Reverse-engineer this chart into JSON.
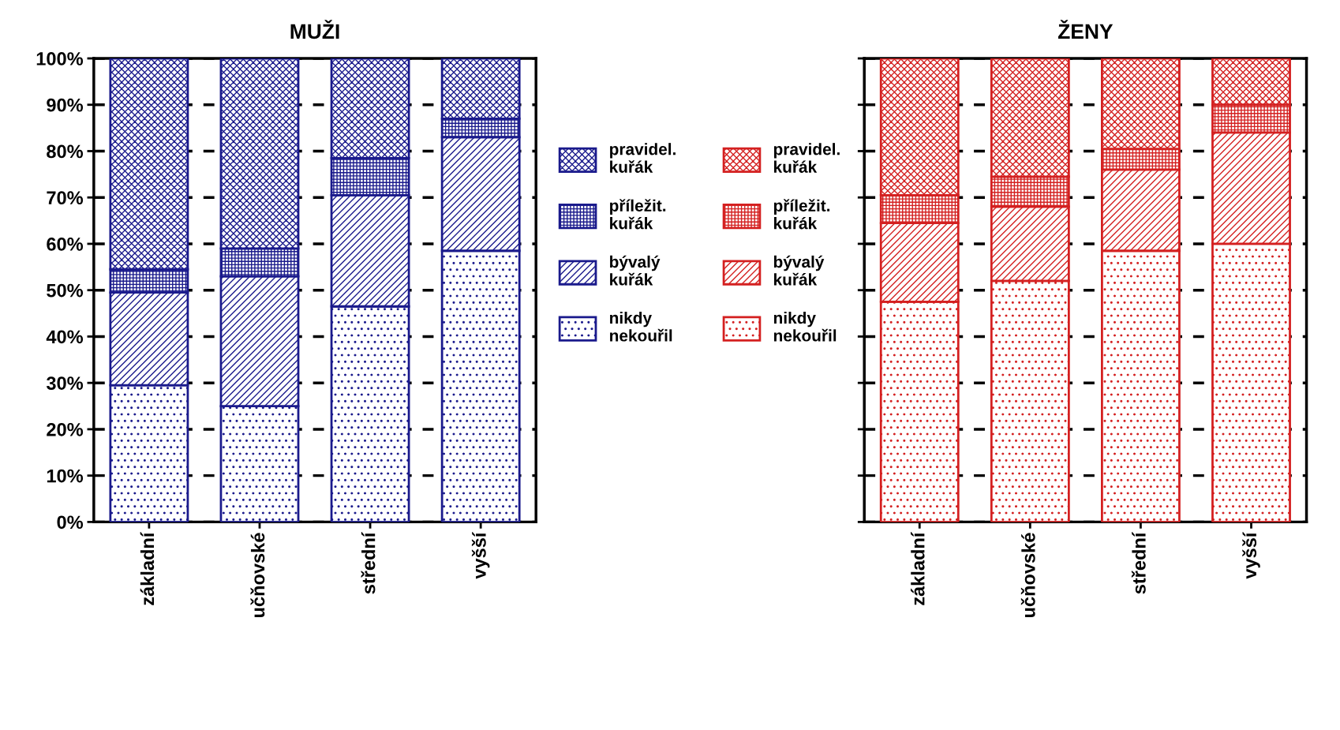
{
  "chart_data": [
    {
      "type": "bar",
      "title": "MUŽI",
      "stacked": true,
      "categories": [
        "základní",
        "učňovské",
        "střední",
        "vyšší"
      ],
      "ylim": [
        0,
        100
      ],
      "yticks": [
        {
          "value": 0,
          "label": "0%"
        },
        {
          "value": 10,
          "label": "10%"
        },
        {
          "value": 20,
          "label": "20%"
        },
        {
          "value": 30,
          "label": "30%"
        },
        {
          "value": 40,
          "label": "40%"
        },
        {
          "value": 50,
          "label": "50%"
        },
        {
          "value": 60,
          "label": "60%"
        },
        {
          "value": 70,
          "label": "70%"
        },
        {
          "value": 80,
          "label": "80%"
        },
        {
          "value": 90,
          "label": "90%"
        },
        {
          "value": 100,
          "label": "100%"
        }
      ],
      "grid": "y",
      "legend": "right",
      "series": [
        {
          "name": "nikdy\nnekouřil",
          "color": "#1a1a8c",
          "values": [
            29.5,
            25,
            46.5,
            58.5
          ]
        },
        {
          "name": "bývalý\nkuřák",
          "color": "#1a1a8c",
          "values": [
            20,
            28,
            24,
            24.5
          ]
        },
        {
          "name": "příležit.\nkuřák",
          "color": "#1a1a8c",
          "values": [
            5,
            6,
            8,
            4
          ]
        },
        {
          "name": "pravidel.\nkuřák",
          "color": "#1a1a8c",
          "values": [
            45.5,
            41,
            21.5,
            13
          ]
        }
      ]
    },
    {
      "type": "bar",
      "title": "ŽENY",
      "stacked": true,
      "categories": [
        "základní",
        "učňovské",
        "střední",
        "vyšší"
      ],
      "ylim": [
        0,
        100
      ],
      "yticks": [
        0,
        10,
        20,
        30,
        40,
        50,
        60,
        70,
        80,
        90,
        100
      ],
      "tick_labels": "x",
      "grid": "y",
      "legend": "left",
      "series": [
        {
          "name": "nikdy\nnekouřil",
          "color": "#d42020",
          "values": [
            47.5,
            52,
            58.5,
            60
          ]
        },
        {
          "name": "bývalý\nkuřák",
          "color": "#d42020",
          "values": [
            17,
            16,
            17.5,
            24
          ]
        },
        {
          "name": "příležit.\nkuřák",
          "color": "#d42020",
          "values": [
            6,
            6.5,
            4.5,
            6
          ]
        },
        {
          "name": "pravidel.\nkuřák",
          "color": "#d42020",
          "values": [
            29.5,
            25.5,
            19.5,
            10
          ]
        }
      ]
    }
  ]
}
